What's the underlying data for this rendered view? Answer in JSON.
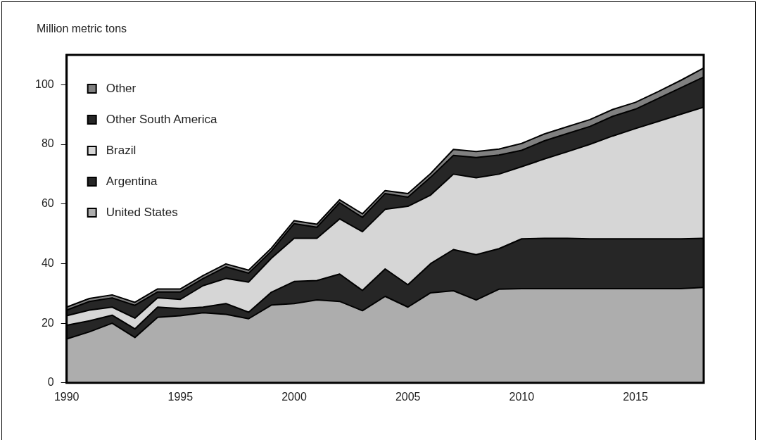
{
  "chart_data": {
    "type": "area",
    "stacked": true,
    "ylabel": "Million metric tons",
    "x": [
      1990,
      1991,
      1992,
      1993,
      1994,
      1995,
      1996,
      1997,
      1998,
      1999,
      2000,
      2001,
      2002,
      2003,
      2004,
      2005,
      2006,
      2007,
      2008,
      2009,
      2010,
      2011,
      2012,
      2013,
      2014,
      2015,
      2016,
      2017,
      2018
    ],
    "xlim": [
      1990,
      2018
    ],
    "xticks": [
      1990,
      1995,
      2000,
      2005,
      2010,
      2015
    ],
    "ylim": [
      0,
      110
    ],
    "yticks": [
      0,
      20,
      40,
      60,
      80,
      100
    ],
    "grid": false,
    "legend": "top left",
    "marker": "none",
    "line_style": "solid",
    "series": [
      {
        "name": "United States",
        "color": "#adadad",
        "values": [
          14.7,
          17.1,
          20,
          15.2,
          22,
          22.5,
          23.5,
          23,
          21.5,
          26.1,
          26.6,
          27.8,
          27.3,
          24.2,
          29,
          25.4,
          30.2,
          30.9,
          27.8,
          31.4,
          31.6,
          31.6,
          31.6,
          31.6,
          31.6,
          31.6,
          31.6,
          31.6,
          32
        ]
      },
      {
        "name": "Argentina",
        "color": "#262626",
        "values": [
          4.6,
          3.7,
          2.7,
          2.9,
          3.4,
          2.4,
          1.9,
          3.6,
          2.2,
          4.3,
          7.4,
          6.5,
          9.2,
          6.8,
          9.2,
          7.5,
          9.8,
          13.8,
          15.2,
          13.6,
          16.7,
          16.9,
          16.9,
          16.7,
          16.7,
          16.7,
          16.7,
          16.7,
          16.5
        ]
      },
      {
        "name": "Brazil",
        "color": "#d6d6d6",
        "values": [
          3.2,
          3.6,
          2.7,
          3.6,
          3.1,
          3.1,
          7.2,
          8.4,
          10.1,
          11.4,
          14.5,
          14.2,
          18.5,
          19.7,
          20,
          26.3,
          23,
          25.3,
          25.8,
          25,
          24.2,
          26.6,
          29,
          31.7,
          34.5,
          37,
          39.4,
          41.8,
          44
        ]
      },
      {
        "name": "Other South America",
        "color": "#262626",
        "values": [
          1.9,
          2.9,
          3.1,
          4.3,
          2,
          2.5,
          2.4,
          3.9,
          3,
          2.4,
          4.9,
          3.7,
          5.4,
          4.8,
          5.3,
          3.1,
          6,
          6.3,
          6.8,
          6.4,
          5.5,
          6.1,
          6.1,
          6,
          6.6,
          6.5,
          7.7,
          8.9,
          10.1
        ]
      },
      {
        "name": "Other",
        "color": "#808080",
        "values": [
          1,
          1,
          1,
          1,
          1,
          1,
          1,
          1,
          1,
          1,
          1,
          1,
          1,
          1.2,
          1,
          1.2,
          1.2,
          2,
          2,
          2,
          2.3,
          2.3,
          2.3,
          2.3,
          2.3,
          2.3,
          2.3,
          2.5,
          3
        ]
      }
    ]
  }
}
